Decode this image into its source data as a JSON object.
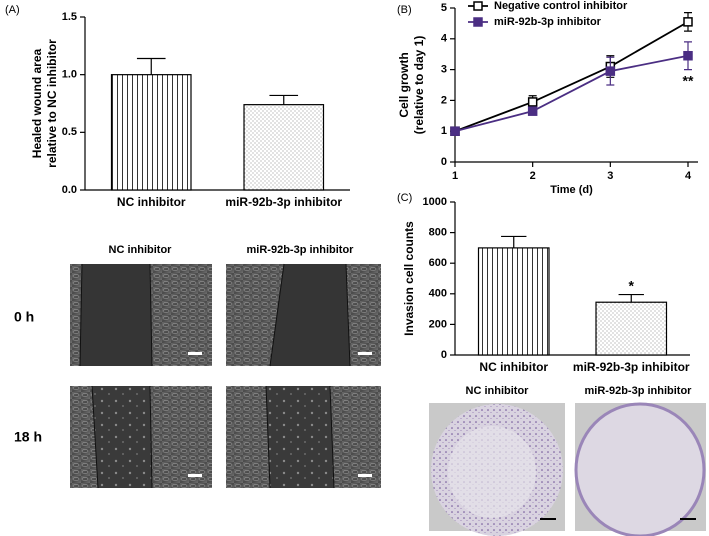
{
  "chart_data": [
    {
      "type": "bar",
      "panel": "(A)",
      "ylabel": [
        "Healed wound area",
        "relative to NC inhibitor"
      ],
      "categories": [
        "NC inhibitor",
        "miR-92b-3p inhibitor"
      ],
      "values": [
        1.0,
        0.74
      ],
      "errors": [
        0.14,
        0.08
      ],
      "patterns": [
        "vertical-lines",
        "dots"
      ],
      "color": "#000000",
      "ylim": [
        0,
        1.5
      ],
      "yticks": [
        {
          "value": 0,
          "label": "0.0"
        },
        0.5,
        {
          "value": 1,
          "label": "1.0"
        },
        1.5
      ]
    },
    {
      "type": "line",
      "panel": "(B)",
      "ylabel": [
        "Cell growth",
        "(relative to day 1)"
      ],
      "xlabel": "Time (d)",
      "x": [
        1,
        2,
        3,
        4
      ],
      "xlim": [
        1,
        4
      ],
      "xticks": [
        1,
        2,
        3,
        4
      ],
      "ylim": [
        0,
        5
      ],
      "yticks": [
        0,
        1,
        2,
        3,
        4,
        5
      ],
      "series": [
        {
          "name": "Negative control inhibitor",
          "color": "#000000",
          "marker": "open-square",
          "values": [
            1,
            1.95,
            3.1,
            4.55
          ],
          "errors": [
            0.05,
            0.2,
            0.35,
            0.3
          ]
        },
        {
          "name": "miR-92b-3p inhibitor",
          "color": "#4b2e83",
          "marker": "filled-square",
          "values": [
            1,
            1.65,
            2.95,
            3.45
          ],
          "errors": [
            0.05,
            0.08,
            0.45,
            0.45
          ]
        }
      ],
      "annotations": [
        {
          "text": "**",
          "series": 1,
          "x": 4
        }
      ]
    },
    {
      "type": "bar",
      "panel": "(C)",
      "ylabel": [
        "Invasion cell counts"
      ],
      "categories": [
        "NC inhibitor",
        "miR-92b-3p inhibitor"
      ],
      "values": [
        700,
        345
      ],
      "errors": [
        75,
        50
      ],
      "patterns": [
        "vertical-lines",
        "dots"
      ],
      "color": "#000000",
      "ylim": [
        0,
        1000
      ],
      "yticks": [
        0,
        200,
        400,
        600,
        800,
        1000
      ],
      "annotations": [
        {
          "text": "*",
          "category": 1
        }
      ]
    }
  ],
  "images": {
    "wound_columns": [
      "NC inhibitor",
      "miR-92b-3p inhibitor"
    ],
    "wound_rows": [
      "0 h",
      "18 h"
    ],
    "invasion_columns": [
      "NC inhibitor",
      "miR-92b-3p inhibitor"
    ]
  }
}
